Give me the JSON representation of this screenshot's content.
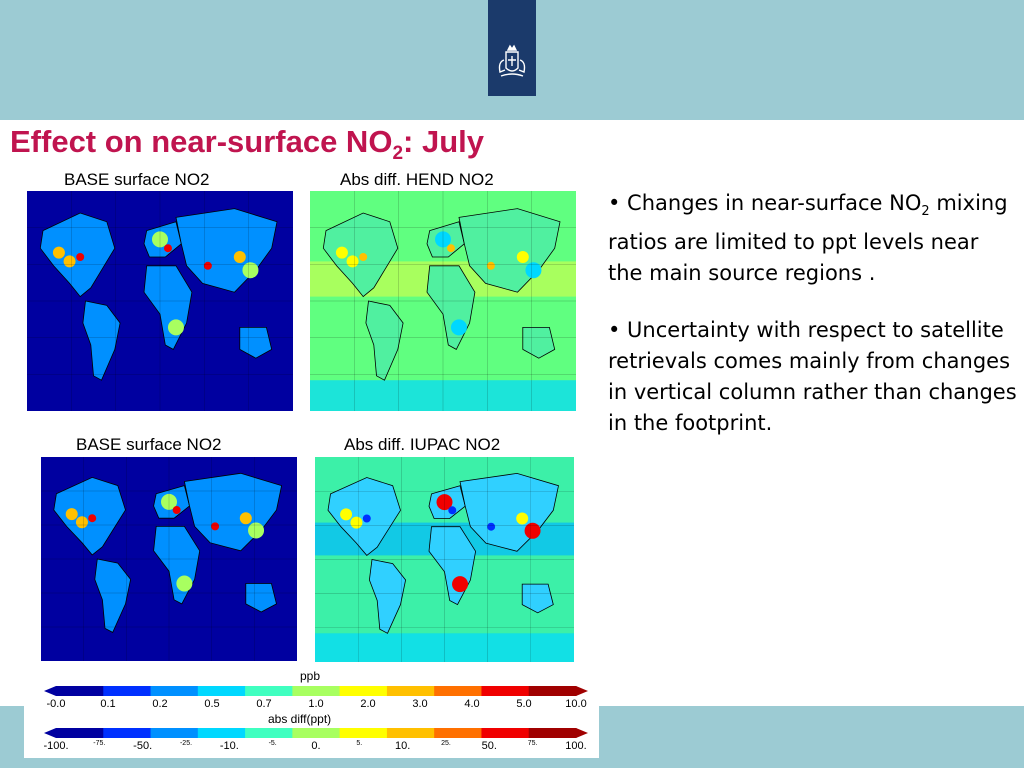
{
  "slide": {
    "title_main": "Effect on near-surface NO",
    "title_sub": "2",
    "title_end": ": July"
  },
  "panels": [
    {
      "title": "BASE surface NO2",
      "palette": "base"
    },
    {
      "title": "Abs diff. HEND NO2",
      "palette": "diff1"
    },
    {
      "title": "BASE surface NO2",
      "palette": "base"
    },
    {
      "title": "Abs diff. IUPAC NO2",
      "palette": "diff2"
    }
  ],
  "bullets": [
    {
      "lead": "• Changes in near-surface NO",
      "sub": "2",
      "rest": " mixing ratios are limited to ppt levels near the main source regions ."
    },
    {
      "lead": "• Uncertainty with respect to satellite retrievals comes mainly from changes in vertical column rather than changes in the footprint.",
      "sub": "",
      "rest": ""
    }
  ],
  "colorbar_top": {
    "label": "ppb",
    "ticks": [
      "-0.0",
      "0.1",
      "0.2",
      "0.5",
      "0.7",
      "1.0",
      "2.0",
      "3.0",
      "4.0",
      "5.0",
      "10.0"
    ]
  },
  "colorbar_bottom": {
    "label": "abs diff(ppt)",
    "ticks": [
      "-100.",
      "-75.",
      "-50.",
      "-25.",
      "-10.",
      "-5.",
      "0.",
      "5.",
      "10.",
      "25.",
      "50.",
      "75.",
      "100."
    ]
  },
  "colors": {
    "title": "#c0144f",
    "band": "#9ccbd3",
    "logo": "#1b3a6b",
    "scale": [
      "#0000a0",
      "#0030ff",
      "#0090ff",
      "#00d8ff",
      "#40ffc0",
      "#a8ff60",
      "#ffff00",
      "#ffc000",
      "#ff7000",
      "#f00000",
      "#a00000"
    ]
  },
  "icons": {
    "logo": "royal-coat-of-arms-icon"
  }
}
